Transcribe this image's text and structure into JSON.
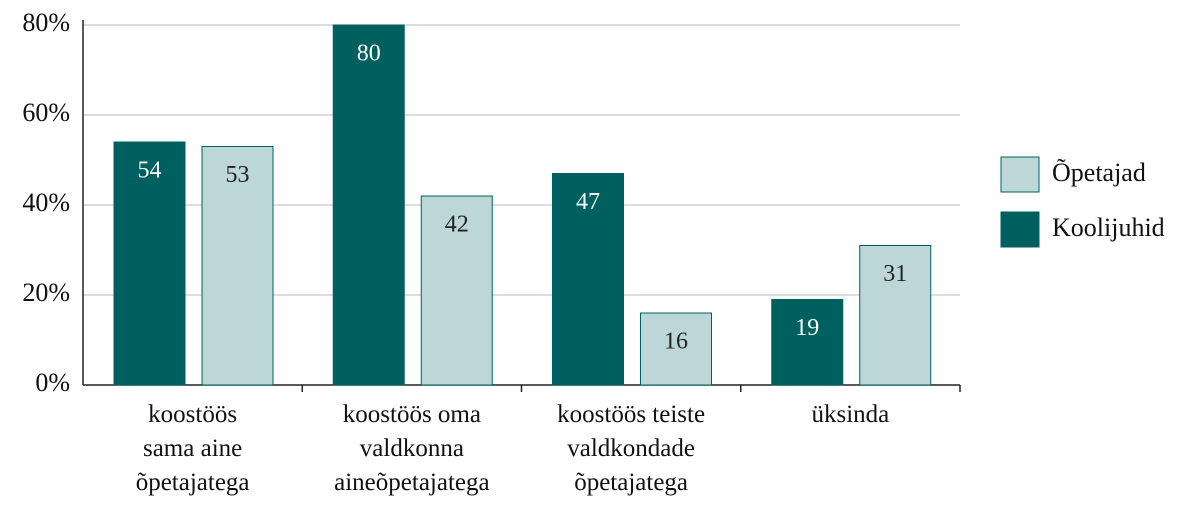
{
  "chart_data": {
    "type": "bar",
    "categories": [
      "koostöös\nsama aine\nõpetajatega",
      "koostöös oma\nvaldkonna\naineõpetajatega",
      "koostöös teiste\nvaldkondade\nõpetajatega",
      "üksinda"
    ],
    "series": [
      {
        "name": "Koolijuhid",
        "color": "#00605f",
        "values": [
          54,
          80,
          47,
          19
        ]
      },
      {
        "name": "Õpetajad",
        "color": "#bdd7d8",
        "values": [
          53,
          42,
          16,
          31
        ]
      }
    ],
    "ylim": [
      0,
      80
    ],
    "yticks": [
      {
        "value": 0,
        "label": "0%"
      },
      {
        "value": 20,
        "label": "20%"
      },
      {
        "value": 40,
        "label": "40%"
      },
      {
        "value": 60,
        "label": "60%"
      },
      {
        "value": 80,
        "label": "80%"
      }
    ],
    "grid": true
  }
}
